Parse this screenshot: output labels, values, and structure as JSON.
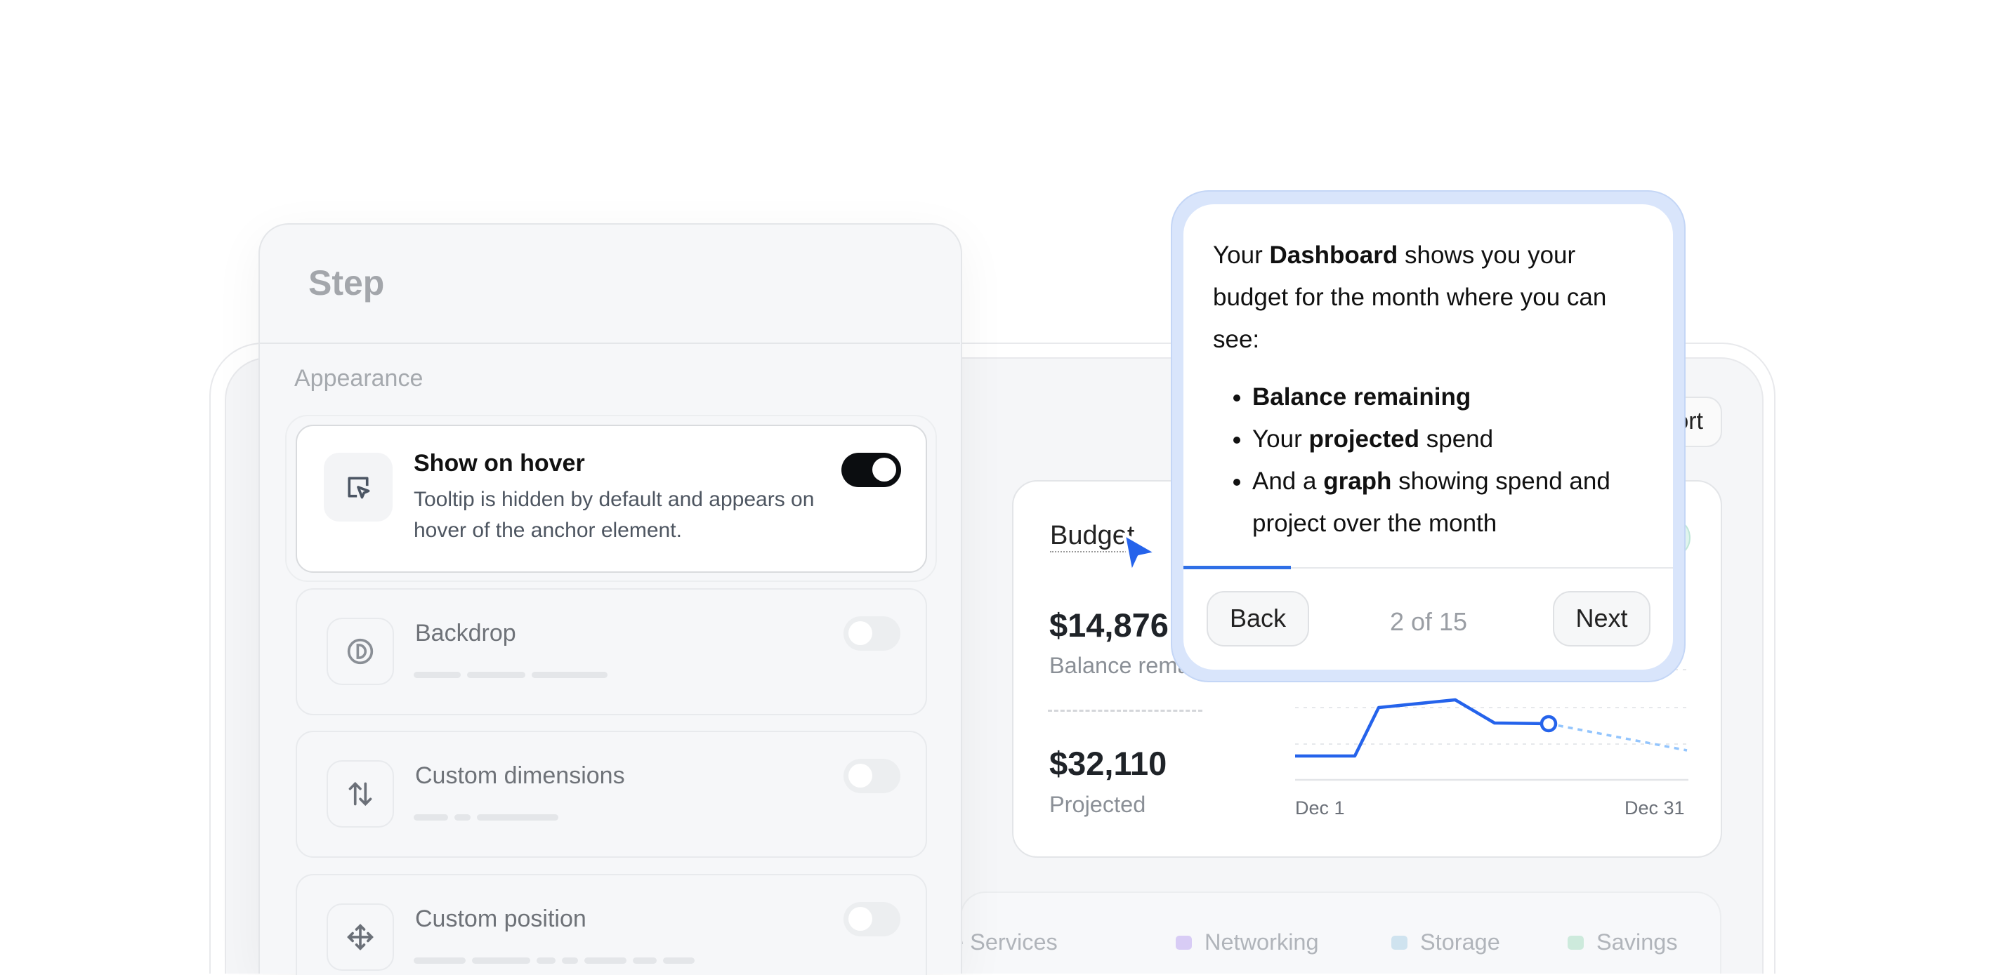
{
  "dashboard": {
    "export_label": "Export",
    "budget": {
      "title": "Budget",
      "balance_value": "$14,876",
      "balance_label": "Balance remaining",
      "projected_value": "$32,110",
      "projected_label": "Projected",
      "chart": {
        "x_start_label": "Dec 1",
        "x_end_label": "Dec 31",
        "actual_color": "#2563eb",
        "projected_color": "#93c5fd"
      }
    },
    "legend": [
      {
        "label": "Database Services",
        "color": "#c7c9f5"
      },
      {
        "label": "Networking",
        "color": "#d8ccf5"
      },
      {
        "label": "Storage",
        "color": "#cfe3ef"
      },
      {
        "label": "Savings",
        "color": "#cdeadc"
      }
    ]
  },
  "step_panel": {
    "title": "Step",
    "section": "Appearance",
    "options": [
      {
        "title": "Show on hover",
        "description": "Tooltip is hidden by default and appears on hover of the anchor element.",
        "icon": "cursor-box-icon",
        "enabled": true
      },
      {
        "title": "Backdrop",
        "icon": "half-circle-icon",
        "enabled": false
      },
      {
        "title": "Custom dimensions",
        "icon": "arrows-up-down-icon",
        "enabled": false
      },
      {
        "title": "Custom position",
        "icon": "move-icon",
        "enabled": false
      }
    ]
  },
  "tooltip": {
    "intro_1": "Your ",
    "intro_bold": "Dashboard",
    "intro_2": " shows you your budget for the month where you can see:",
    "bullets": [
      {
        "pre": "",
        "bold": "Balance remaining",
        "post": ""
      },
      {
        "pre": "Your ",
        "bold": "projected",
        "post": " spend"
      },
      {
        "pre": "And a ",
        "bold": "graph",
        "post": " showing spend and project over the month"
      }
    ],
    "progress_fraction": 0.22,
    "back_label": "Back",
    "next_label": "Next",
    "counter": "2 of 15",
    "accent": "#2f6fe6"
  }
}
